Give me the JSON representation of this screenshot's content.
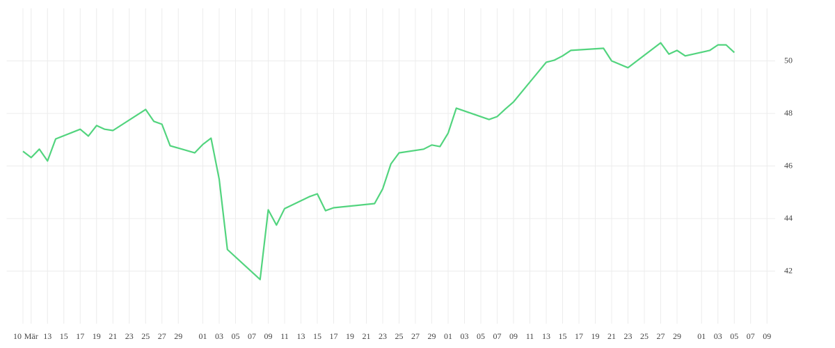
{
  "chart_data": {
    "type": "line",
    "x": [
      "03-10",
      "03-11",
      "03-12",
      "03-13",
      "03-14",
      "03-17",
      "03-18",
      "03-19",
      "03-20",
      "03-21",
      "03-25",
      "03-26",
      "03-27",
      "03-28",
      "03-31",
      "04-01",
      "04-02",
      "04-03",
      "04-04",
      "04-08",
      "04-09",
      "04-10",
      "04-11",
      "04-14",
      "04-15",
      "04-16",
      "04-17",
      "04-22",
      "04-23",
      "04-24",
      "04-25",
      "04-28",
      "04-29",
      "04-30",
      "05-01",
      "05-02",
      "05-06",
      "05-07",
      "05-08",
      "05-09",
      "05-13",
      "05-14",
      "05-15",
      "05-16",
      "05-20",
      "05-21",
      "05-23",
      "05-27",
      "05-28",
      "05-29",
      "05-30",
      "06-02",
      "06-03",
      "06-04",
      "06-05"
    ],
    "series": [
      {
        "color": "#52d47e",
        "values": [
          46.56,
          46.32,
          46.64,
          46.19,
          47.03,
          47.4,
          47.14,
          47.54,
          47.4,
          47.35,
          48.15,
          47.7,
          47.59,
          46.77,
          46.5,
          46.82,
          47.06,
          45.5,
          42.82,
          41.68,
          44.33,
          43.75,
          44.38,
          44.83,
          44.94,
          44.3,
          44.41,
          44.57,
          45.13,
          46.08,
          46.5,
          46.64,
          46.8,
          46.74,
          47.25,
          48.2,
          47.77,
          47.88,
          48.17,
          48.44,
          49.95,
          50.03,
          50.19,
          50.4,
          50.48,
          50.0,
          49.74,
          50.69,
          50.26,
          50.4,
          50.19,
          50.4,
          50.61,
          50.61,
          50.32
        ]
      }
    ],
    "xlim": [
      "03-08",
      "06-10"
    ],
    "xticks": [
      {
        "value": "03-10",
        "label": "10"
      },
      {
        "value": "03-11",
        "label": "Mär"
      },
      {
        "value": "03-13",
        "label": "13"
      },
      {
        "value": "03-15",
        "label": "15"
      },
      {
        "value": "03-17",
        "label": "17"
      },
      {
        "value": "03-19",
        "label": "19"
      },
      {
        "value": "03-21",
        "label": "21"
      },
      {
        "value": "03-23",
        "label": "23"
      },
      {
        "value": "03-25",
        "label": "25"
      },
      {
        "value": "03-27",
        "label": "27"
      },
      {
        "value": "03-29",
        "label": "29"
      },
      {
        "value": "04-01",
        "label": "01"
      },
      {
        "value": "04-03",
        "label": "03"
      },
      {
        "value": "04-05",
        "label": "05"
      },
      {
        "value": "04-07",
        "label": "07"
      },
      {
        "value": "04-09",
        "label": "09"
      },
      {
        "value": "04-11",
        "label": "11"
      },
      {
        "value": "04-13",
        "label": "13"
      },
      {
        "value": "04-15",
        "label": "15"
      },
      {
        "value": "04-17",
        "label": "17"
      },
      {
        "value": "04-19",
        "label": "19"
      },
      {
        "value": "04-21",
        "label": "21"
      },
      {
        "value": "04-23",
        "label": "23"
      },
      {
        "value": "04-25",
        "label": "25"
      },
      {
        "value": "04-27",
        "label": "27"
      },
      {
        "value": "04-29",
        "label": "29"
      },
      {
        "value": "05-01",
        "label": "01"
      },
      {
        "value": "05-03",
        "label": "03"
      },
      {
        "value": "05-05",
        "label": "05"
      },
      {
        "value": "05-07",
        "label": "07"
      },
      {
        "value": "05-09",
        "label": "09"
      },
      {
        "value": "05-11",
        "label": "11"
      },
      {
        "value": "05-13",
        "label": "13"
      },
      {
        "value": "05-15",
        "label": "15"
      },
      {
        "value": "05-17",
        "label": "17"
      },
      {
        "value": "05-19",
        "label": "19"
      },
      {
        "value": "05-21",
        "label": "21"
      },
      {
        "value": "05-23",
        "label": "23"
      },
      {
        "value": "05-25",
        "label": "25"
      },
      {
        "value": "05-27",
        "label": "27"
      },
      {
        "value": "05-29",
        "label": "29"
      },
      {
        "value": "06-01",
        "label": "01"
      },
      {
        "value": "06-03",
        "label": "03"
      },
      {
        "value": "06-05",
        "label": "05"
      },
      {
        "value": "06-07",
        "label": "07"
      },
      {
        "value": "06-09",
        "label": "09"
      }
    ],
    "ylim": [
      40,
      52
    ],
    "yticks": [
      42,
      44,
      46,
      48,
      50
    ],
    "grid": true
  }
}
